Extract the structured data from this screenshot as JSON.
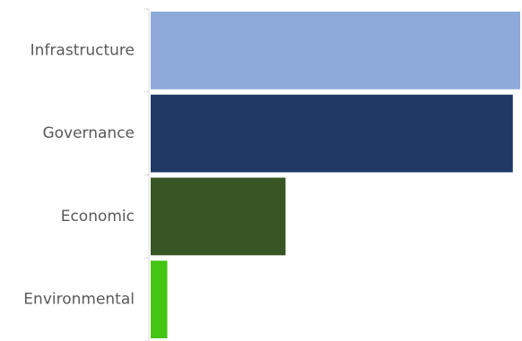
{
  "chart_data": {
    "type": "bar",
    "orientation": "horizontal",
    "title": "",
    "xlabel": "",
    "ylabel": "",
    "categories": [
      "Infrastructure",
      "Governance",
      "Economic",
      "Environmental"
    ],
    "values": [
      100,
      98,
      36.5,
      4.5
    ],
    "xlim": [
      0,
      100
    ],
    "colors": [
      "#8eaadb",
      "#1f3864",
      "#375623",
      "#44c514"
    ],
    "grid": false,
    "legend": "none"
  }
}
